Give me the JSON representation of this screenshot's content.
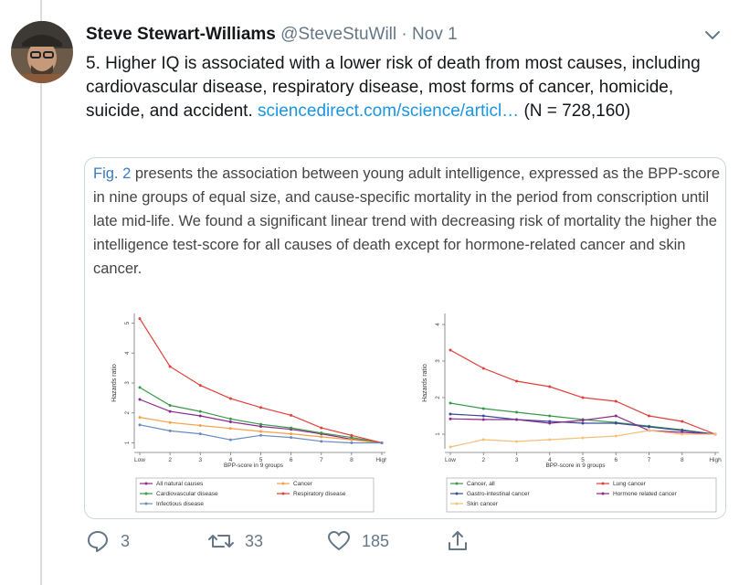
{
  "tweet": {
    "author_name": "Steve Stewart-Williams",
    "handle": "@SteveStuWill",
    "separator": "·",
    "date": "Nov 1",
    "text_main": "5. Higher IQ is associated with a lower risk of death from most causes, including cardiovascular disease, respiratory disease, most forms of cancer, homicide, suicide, and accident. ",
    "link_text": "sciencedirect.com/science/articl…",
    "text_tail": " (N = 728,160)",
    "reply_count": "3",
    "retweet_count": "33",
    "like_count": "185"
  },
  "icons": {
    "menu": "chevron-down-icon",
    "reply": "reply-bubble-icon",
    "retweet": "retweet-icon",
    "like": "heart-icon",
    "share": "share-icon"
  },
  "card": {
    "fig_ref": "Fig. 2",
    "text": " presents the association between young adult intelligence, expressed as the BPP-score in nine groups of equal size, and cause-specific mortality in the period from conscription until late mid-life. We found a significant linear trend with decreasing risk of mortality the higher the intelligence test-score for all causes of death except for hormone-related cancer and skin cancer."
  },
  "chart_data": [
    {
      "type": "line",
      "title": "",
      "xlabel": "BPP-score in 9 groups",
      "ylabel": "Hazards ratio",
      "categories": [
        "Low",
        "2",
        "3",
        "4",
        "5",
        "6",
        "7",
        "8",
        "High"
      ],
      "x_tick_labels": [
        "Low",
        "2",
        "3",
        "4",
        "5",
        "6",
        "7",
        "8",
        "High"
      ],
      "y_ticks": [
        1,
        2,
        3,
        4,
        5
      ],
      "ylim": [
        0.8,
        5.2
      ],
      "legend_position": "bottom",
      "series": [
        {
          "name": "All natural causes",
          "color": "#8b2a8b",
          "values": [
            2.45,
            2.05,
            1.9,
            1.7,
            1.55,
            1.45,
            1.3,
            1.12,
            1.0
          ]
        },
        {
          "name": "Cancer",
          "color": "#f5a04a",
          "values": [
            1.85,
            1.68,
            1.58,
            1.48,
            1.38,
            1.3,
            1.2,
            1.1,
            1.0
          ]
        },
        {
          "name": "Cardiovascular disease",
          "color": "#3a9a4a",
          "values": [
            2.85,
            2.25,
            2.05,
            1.8,
            1.62,
            1.5,
            1.33,
            1.18,
            1.0
          ]
        },
        {
          "name": "Respiratory disease",
          "color": "#e0403a",
          "values": [
            5.15,
            3.55,
            2.92,
            2.48,
            2.18,
            1.92,
            1.5,
            1.25,
            1.0
          ]
        },
        {
          "name": "Infectious disease",
          "color": "#6a8bbf",
          "values": [
            1.6,
            1.4,
            1.3,
            1.1,
            1.25,
            1.18,
            1.05,
            1.0,
            1.0
          ]
        }
      ]
    },
    {
      "type": "line",
      "title": "",
      "xlabel": "BPP-score in 9 groups",
      "ylabel": "Hazards ratio",
      "categories": [
        "Low",
        "2",
        "3",
        "4",
        "5",
        "6",
        "7",
        "8",
        "High"
      ],
      "x_tick_labels": [
        "Low",
        "2",
        "3",
        "4",
        "5",
        "6",
        "7",
        "8",
        "High"
      ],
      "y_ticks": [
        1,
        2,
        3,
        4
      ],
      "ylim": [
        0.6,
        4.2
      ],
      "legend_position": "bottom",
      "series": [
        {
          "name": "Cancer, all",
          "color": "#3a9a4a",
          "values": [
            1.85,
            1.7,
            1.6,
            1.5,
            1.4,
            1.32,
            1.22,
            1.12,
            1.0
          ]
        },
        {
          "name": "Lung cancer",
          "color": "#e0403a",
          "values": [
            3.3,
            2.8,
            2.45,
            2.3,
            2.0,
            1.9,
            1.5,
            1.35,
            1.0
          ]
        },
        {
          "name": "Gastro-intestinal cancer",
          "color": "#3a4a9a",
          "values": [
            1.55,
            1.5,
            1.4,
            1.35,
            1.3,
            1.3,
            1.2,
            1.1,
            1.0
          ]
        },
        {
          "name": "Hormone related cancer",
          "color": "#8b2a8b",
          "values": [
            1.42,
            1.4,
            1.4,
            1.3,
            1.38,
            1.5,
            1.1,
            1.05,
            1.0
          ]
        },
        {
          "name": "Skin cancer",
          "color": "#f5c07a",
          "values": [
            0.65,
            0.85,
            0.8,
            0.85,
            0.9,
            0.95,
            1.1,
            1.0,
            1.0
          ]
        }
      ]
    }
  ]
}
